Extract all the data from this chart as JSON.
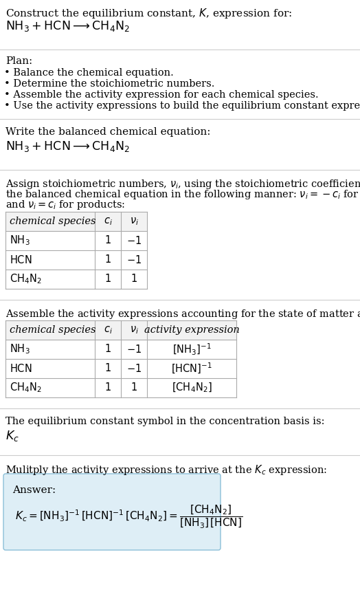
{
  "bg_color": "#ffffff",
  "text_color": "#000000",
  "answer_bg": "#deeef6",
  "answer_border": "#8bbfd8",
  "title_text": "Construct the equilibrium constant, $K$, expression for:",
  "reaction_line1": "$\\mathrm{NH_3 + HCN} \\longrightarrow \\mathrm{CH_4N_2}$",
  "plan_title": "Plan:",
  "plan_items": [
    "• Balance the chemical equation.",
    "• Determine the stoichiometric numbers.",
    "• Assemble the activity expression for each chemical species.",
    "• Use the activity expressions to build the equilibrium constant expression."
  ],
  "section2_title": "Write the balanced chemical equation:",
  "section2_reaction": "$\\mathrm{NH_3 + HCN} \\longrightarrow \\mathrm{CH_4N_2}$",
  "section3_lines": [
    "Assign stoichiometric numbers, $\\nu_i$, using the stoichiometric coefficients, $c_i$, from",
    "the balanced chemical equation in the following manner: $\\nu_i = -c_i$ for reactants",
    "and $\\nu_i = c_i$ for products:"
  ],
  "table1_headers": [
    "chemical species",
    "$c_i$",
    "$\\nu_i$"
  ],
  "table1_rows": [
    [
      "$\\mathrm{NH_3}$",
      "1",
      "$-1$"
    ],
    [
      "$\\mathrm{HCN}$",
      "1",
      "$-1$"
    ],
    [
      "$\\mathrm{CH_4N_2}$",
      "1",
      "1"
    ]
  ],
  "section4_title": "Assemble the activity expressions accounting for the state of matter and $\\nu_i$:",
  "table2_headers": [
    "chemical species",
    "$c_i$",
    "$\\nu_i$",
    "activity expression"
  ],
  "table2_rows": [
    [
      "$\\mathrm{NH_3}$",
      "1",
      "$-1$",
      "$[\\mathrm{NH_3}]^{-1}$"
    ],
    [
      "$\\mathrm{HCN}$",
      "1",
      "$-1$",
      "$[\\mathrm{HCN}]^{-1}$"
    ],
    [
      "$\\mathrm{CH_4N_2}$",
      "1",
      "1",
      "$[\\mathrm{CH_4N_2}]$"
    ]
  ],
  "section5_title": "The equilibrium constant symbol in the concentration basis is:",
  "section5_symbol": "$K_c$",
  "section6_title": "Mulitply the activity expressions to arrive at the $K_c$ expression:",
  "answer_label": "Answer:",
  "answer_line1": "$K_c = [\\mathrm{NH_3}]^{-1}\\,[\\mathrm{HCN}]^{-1}\\,[\\mathrm{CH_4N_2}] = \\dfrac{[\\mathrm{CH_4N_2}]}{[\\mathrm{NH_3}]\\,[\\mathrm{HCN}]}$",
  "sep_color": "#cccccc",
  "table_border": "#aaaaaa",
  "table_header_bg": "#f2f2f2"
}
